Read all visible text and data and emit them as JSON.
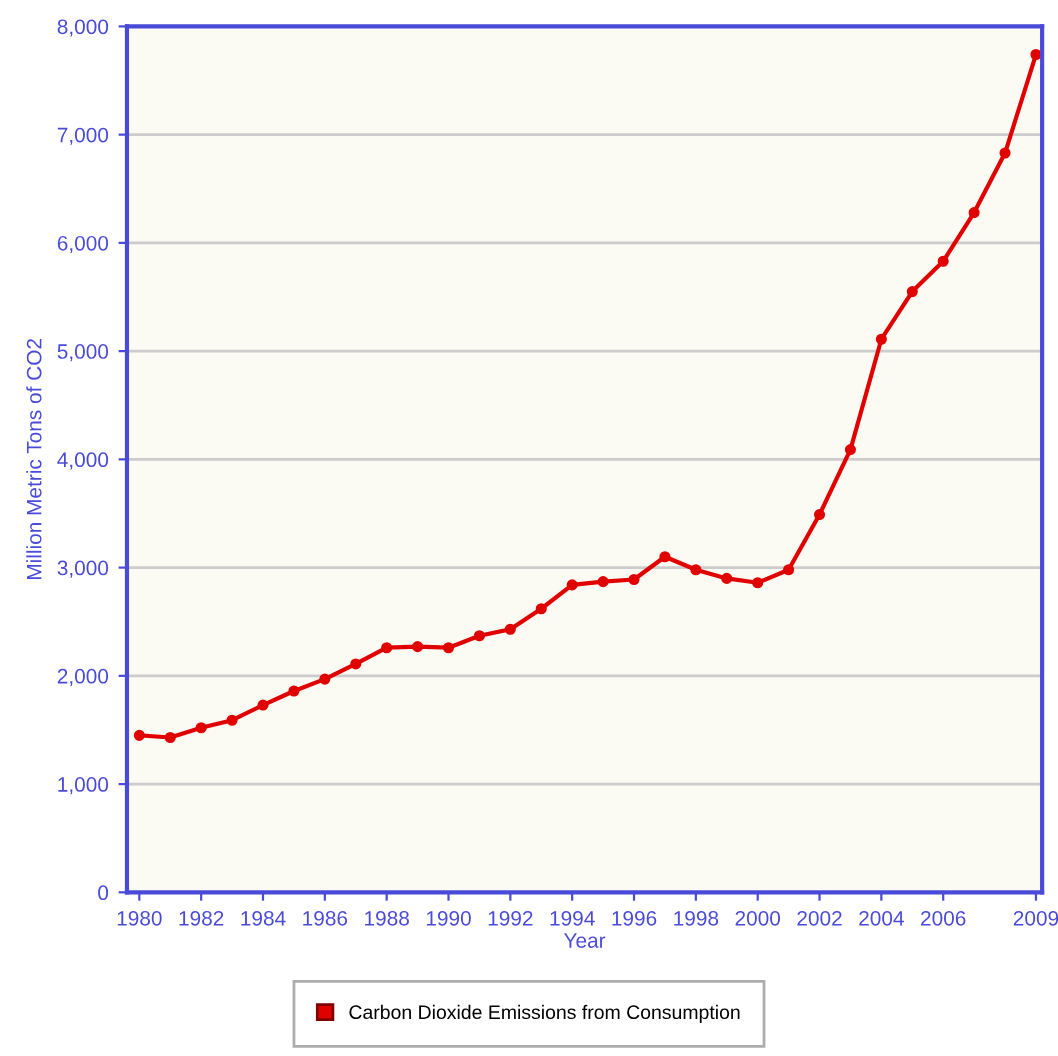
{
  "chart_data": {
    "type": "line",
    "xlabel": "Year",
    "ylabel": "Million Metric Tons of CO2",
    "x": [
      1980,
      1981,
      1982,
      1983,
      1984,
      1985,
      1986,
      1987,
      1988,
      1989,
      1990,
      1991,
      1992,
      1993,
      1994,
      1995,
      1996,
      1997,
      1998,
      1999,
      2000,
      2001,
      2002,
      2003,
      2004,
      2005,
      2006,
      2007,
      2008,
      2009
    ],
    "series": [
      {
        "name": "Carbon Dioxide Emissions from Consumption",
        "color": "#e00000",
        "values": [
          1450,
          1430,
          1520,
          1590,
          1730,
          1860,
          1970,
          2110,
          2260,
          2270,
          2260,
          2370,
          2430,
          2620,
          2840,
          2870,
          2890,
          3100,
          2980,
          2900,
          2860,
          2980,
          3490,
          4090,
          5110,
          5550,
          5830,
          6280,
          6830,
          7740
        ]
      }
    ],
    "xlim": [
      1979.6,
      2009.2
    ],
    "xticks": [
      1980,
      1982,
      1984,
      1986,
      1988,
      1990,
      1992,
      1994,
      1996,
      1998,
      2000,
      2002,
      2004,
      2006,
      2009
    ],
    "ylim": [
      0,
      8000
    ],
    "yticks": [
      {
        "value": 0,
        "label": "0"
      },
      {
        "value": 1000,
        "label": "1,000"
      },
      {
        "value": 2000,
        "label": "2,000"
      },
      {
        "value": 3000,
        "label": "3,000"
      },
      {
        "value": 4000,
        "label": "4,000"
      },
      {
        "value": 5000,
        "label": "5,000"
      },
      {
        "value": 6000,
        "label": "6,000"
      },
      {
        "value": 7000,
        "label": "7,000"
      },
      {
        "value": 8000,
        "label": "8,000"
      }
    ],
    "grid": "y",
    "legend": "bottom",
    "marker": "circle",
    "line_style": "solid"
  }
}
